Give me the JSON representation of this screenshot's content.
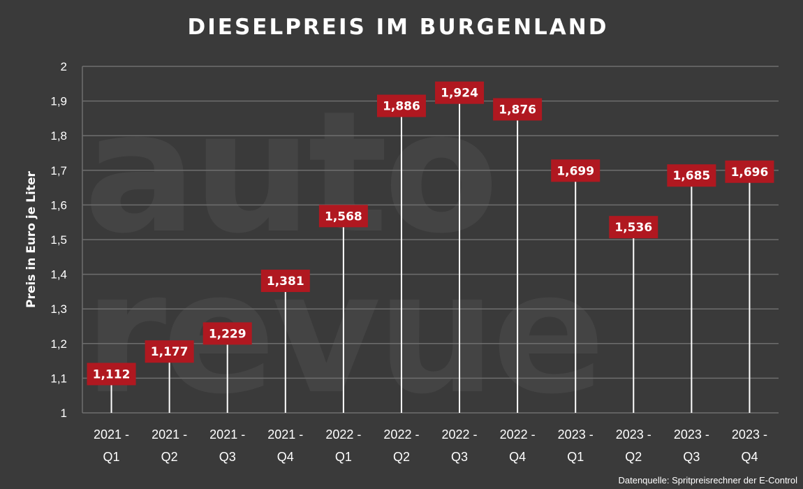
{
  "chart_data": {
    "type": "bar",
    "title": "DIESELPREIS IM BURGENLAND",
    "ylabel": "Preis in Euro je Liter",
    "xlabel": "",
    "ylim": [
      1,
      2
    ],
    "yticks": [
      "1",
      "1,1",
      "1,2",
      "1,3",
      "1,4",
      "1,5",
      "1,6",
      "1,7",
      "1,8",
      "1,9",
      "2"
    ],
    "grid": true,
    "categories": [
      [
        "2021 -",
        "Q1"
      ],
      [
        "2021 -",
        "Q2"
      ],
      [
        "2021 -",
        "Q3"
      ],
      [
        "2021 -",
        "Q4"
      ],
      [
        "2022 -",
        "Q1"
      ],
      [
        "2022 -",
        "Q2"
      ],
      [
        "2022 -",
        "Q3"
      ],
      [
        "2022 -",
        "Q4"
      ],
      [
        "2023 -",
        "Q1"
      ],
      [
        "2023 -",
        "Q2"
      ],
      [
        "2023 -",
        "Q3"
      ],
      [
        "2023 -",
        "Q4"
      ]
    ],
    "values": [
      1.112,
      1.177,
      1.229,
      1.381,
      1.568,
      1.886,
      1.924,
      1.876,
      1.699,
      1.536,
      1.685,
      1.696
    ],
    "value_labels": [
      "1,112",
      "1,177",
      "1,229",
      "1,381",
      "1,568",
      "1,886",
      "1,924",
      "1,876",
      "1,699",
      "1,536",
      "1,685",
      "1,696"
    ],
    "source": "Datenquelle: Spritpreisrechner der E-Control",
    "watermark": [
      "auto",
      "revue"
    ],
    "colors": {
      "background": "#3a3a3a",
      "label_box": "#b01820",
      "grid": "#6e6e6e",
      "stem": "#ffffff",
      "text": "#ffffff"
    }
  }
}
